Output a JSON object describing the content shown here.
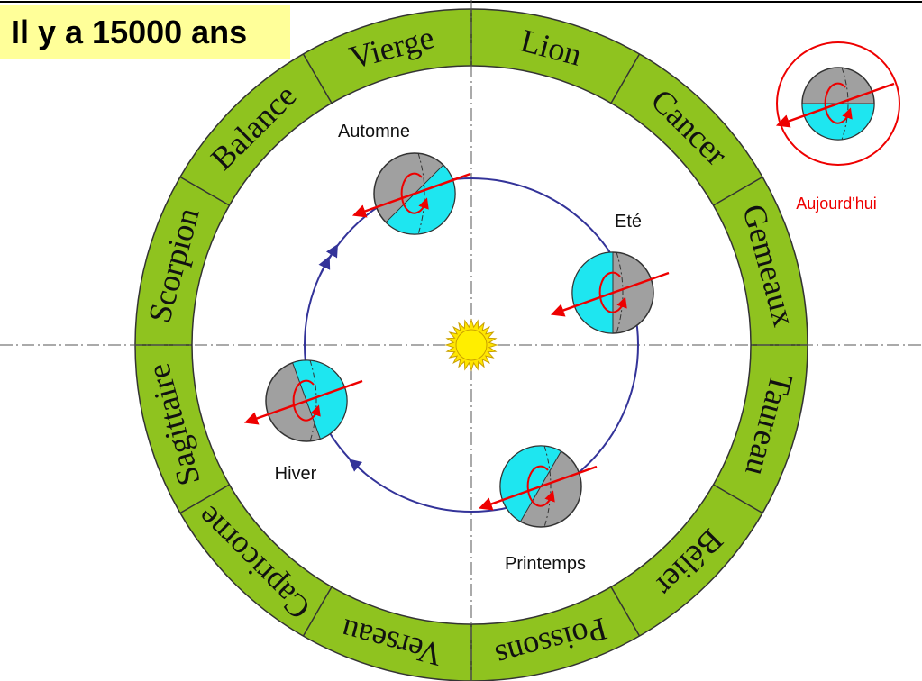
{
  "title": "Il y a 15000 ans",
  "zodiac": [
    "Lion",
    "Cancer",
    "Gemeaux",
    "Taureau",
    "Bélier",
    "Poissons",
    "Verseau",
    "Capricorne",
    "Sagittaire",
    "Scorpion",
    "Balance",
    "Vierge"
  ],
  "seasons": [
    "Automne",
    "Eté",
    "Hiver",
    "Printemps"
  ],
  "today": "Aujourd'hui"
}
